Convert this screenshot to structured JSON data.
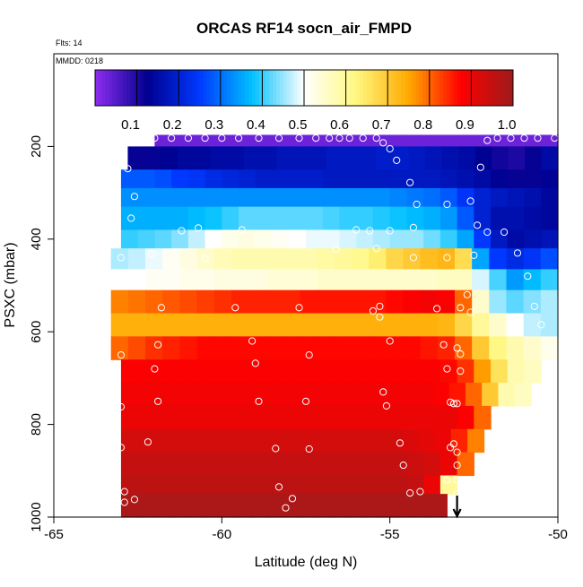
{
  "chart_data": {
    "type": "heatmap",
    "title": "ORCAS RF14 socn_air_FMPD",
    "note_flts": "Flts: 14",
    "note_mmdd": "MMDD: 0218",
    "xlabel": "Latitude (deg N)",
    "ylabel": "PSXC (mbar)",
    "xlim": [
      -65,
      -50
    ],
    "ylim": [
      1000,
      0
    ],
    "x_ticks": [
      -65,
      -60,
      -55,
      -50
    ],
    "x_tick_labels": [
      "-65",
      "-60",
      "-55",
      "-50"
    ],
    "y_ticks": [
      200,
      400,
      600,
      800,
      1000
    ],
    "y_tick_labels": [
      "200",
      "400",
      "600",
      "800",
      "1000"
    ],
    "colorbar": {
      "range": [
        0,
        1
      ],
      "ticks": [
        0.1,
        0.2,
        0.3,
        0.4,
        0.5,
        0.6,
        0.7,
        0.8,
        0.9,
        1.0
      ],
      "tick_labels": [
        "0.1",
        "0.2",
        "0.3",
        "0.4",
        "0.5",
        "0.6",
        "0.7",
        "0.8",
        "0.9",
        "1.0"
      ]
    },
    "colorscale": [
      "#8e2df1",
      "#00008f",
      "#0038ff",
      "#00c0ff",
      "#ffffff",
      "#fff880",
      "#ffaa00",
      "#ff0000",
      "#9c1b1b"
    ],
    "lat_edges": [
      -63.0,
      -62.5,
      -62.0,
      -61.5,
      -61.0,
      -60.5,
      -60.0,
      -59.5,
      -59.0,
      -58.5,
      -58.0,
      -57.5,
      -57.0,
      -56.5,
      -56.0,
      -55.5,
      -55.0,
      -54.5,
      -54.0,
      -53.5,
      -53.0,
      -52.5,
      -52.0,
      -51.5,
      -51.0,
      -50.5,
      -50.0
    ],
    "layers": [
      {
        "p": [
          175,
          200
        ],
        "lat0": -62.0,
        "lat1": -50.0,
        "v": [
          0.03,
          0.03,
          0.03,
          0.03,
          0.03,
          0.03,
          0.03,
          0.03,
          0.03,
          0.03,
          0.03,
          0.03,
          0.03,
          0.03,
          0.03,
          0.03,
          0.03,
          0.03,
          0.03,
          0.03,
          0.03,
          0.03,
          0.03,
          0.03,
          0.03,
          0.03
        ]
      },
      {
        "p": [
          200,
          250
        ],
        "lat0": -62.8,
        "lat1": -50.0,
        "v": [
          0.12,
          0.12,
          0.13,
          0.14,
          0.14,
          0.15,
          0.15,
          0.16,
          0.16,
          0.17,
          0.17,
          0.17,
          0.18,
          0.18,
          0.18,
          0.19,
          0.19,
          0.18,
          0.17,
          0.16,
          0.15,
          0.13,
          0.11,
          0.1,
          0.12,
          0.15
        ]
      },
      {
        "p": [
          250,
          290
        ],
        "lat0": -63.0,
        "lat1": -50.0,
        "v": [
          0.28,
          0.28,
          0.27,
          0.25,
          0.24,
          0.22,
          0.21,
          0.2,
          0.19,
          0.19,
          0.19,
          0.19,
          0.18,
          0.18,
          0.18,
          0.18,
          0.18,
          0.18,
          0.18,
          0.17,
          0.16,
          0.15,
          0.13,
          0.12,
          0.12,
          0.13
        ]
      },
      {
        "p": [
          290,
          330
        ],
        "lat0": -63.0,
        "lat1": -50.0,
        "v": [
          0.33,
          0.33,
          0.33,
          0.33,
          0.33,
          0.33,
          0.33,
          0.33,
          0.33,
          0.33,
          0.33,
          0.33,
          0.33,
          0.33,
          0.33,
          0.33,
          0.32,
          0.31,
          0.3,
          0.28,
          0.24,
          0.2,
          0.18,
          0.17,
          0.16,
          0.14
        ]
      },
      {
        "p": [
          330,
          380
        ],
        "lat0": -63.0,
        "lat1": -50.0,
        "v": [
          0.36,
          0.36,
          0.36,
          0.36,
          0.37,
          0.38,
          0.4,
          0.42,
          0.42,
          0.42,
          0.42,
          0.42,
          0.41,
          0.4,
          0.4,
          0.39,
          0.38,
          0.37,
          0.36,
          0.34,
          0.28,
          0.2,
          0.16,
          0.16,
          0.15,
          0.14
        ]
      },
      {
        "p": [
          380,
          420
        ],
        "lat0": -63.0,
        "lat1": -50.0,
        "v": [
          0.4,
          0.41,
          0.42,
          0.44,
          0.47,
          0.5,
          0.52,
          0.53,
          0.52,
          0.51,
          0.5,
          0.49,
          0.49,
          0.48,
          0.47,
          0.46,
          0.45,
          0.45,
          0.43,
          0.4,
          0.35,
          0.25,
          0.18,
          0.15,
          0.16,
          0.17
        ]
      },
      {
        "p": [
          420,
          465
        ],
        "lat0": -63.3,
        "lat1": -50.0,
        "v": [
          0.46,
          0.47,
          0.49,
          0.51,
          0.53,
          0.55,
          0.57,
          0.58,
          0.58,
          0.58,
          0.58,
          0.58,
          0.59,
          0.6,
          0.61,
          0.64,
          0.68,
          0.7,
          0.72,
          0.73,
          0.67,
          0.35,
          0.25,
          0.22,
          0.24,
          0.27
        ]
      },
      {
        "p": [
          465,
          510
        ],
        "lat0": -63.3,
        "lat1": -50.0,
        "v": [
          0.5,
          0.5,
          0.51,
          0.51,
          0.52,
          0.52,
          0.53,
          0.53,
          0.53,
          0.54,
          0.54,
          0.54,
          0.55,
          0.55,
          0.55,
          0.55,
          0.55,
          0.55,
          0.55,
          0.56,
          0.56,
          0.48,
          0.41,
          0.34,
          0.37,
          0.4
        ]
      },
      {
        "p": [
          510,
          560
        ],
        "lat0": -63.3,
        "lat1": -50.0,
        "v": [
          0.78,
          0.79,
          0.8,
          0.81,
          0.82,
          0.83,
          0.84,
          0.85,
          0.85,
          0.85,
          0.85,
          0.86,
          0.86,
          0.86,
          0.86,
          0.86,
          0.87,
          0.88,
          0.89,
          0.88,
          0.8,
          0.55,
          0.45,
          0.42,
          0.44,
          0.46
        ]
      },
      {
        "p": [
          560,
          610
        ],
        "lat0": -63.3,
        "lat1": -50.0,
        "v": [
          0.74,
          0.74,
          0.74,
          0.74,
          0.74,
          0.74,
          0.74,
          0.74,
          0.74,
          0.74,
          0.74,
          0.74,
          0.74,
          0.74,
          0.74,
          0.74,
          0.74,
          0.74,
          0.74,
          0.73,
          0.68,
          0.6,
          0.55,
          0.5,
          0.47,
          0.46
        ]
      },
      {
        "p": [
          610,
          660
        ],
        "lat0": -63.3,
        "lat1": -50.0,
        "v": [
          0.8,
          0.82,
          0.84,
          0.85,
          0.86,
          0.87,
          0.87,
          0.87,
          0.87,
          0.87,
          0.87,
          0.87,
          0.87,
          0.87,
          0.87,
          0.87,
          0.87,
          0.87,
          0.86,
          0.85,
          0.8,
          0.7,
          0.62,
          0.58,
          0.55,
          0.52
        ]
      },
      {
        "p": [
          660,
          710
        ],
        "lat0": -63.0,
        "lat1": -50.5,
        "v": [
          0.88,
          0.88,
          0.88,
          0.88,
          0.88,
          0.88,
          0.88,
          0.88,
          0.88,
          0.88,
          0.88,
          0.88,
          0.88,
          0.88,
          0.88,
          0.88,
          0.88,
          0.88,
          0.88,
          0.87,
          0.84,
          0.76,
          0.66,
          0.58,
          0.56
        ]
      },
      {
        "p": [
          710,
          760
        ],
        "lat0": -63.0,
        "lat1": -50.8,
        "v": [
          0.89,
          0.89,
          0.89,
          0.89,
          0.89,
          0.89,
          0.89,
          0.89,
          0.89,
          0.89,
          0.89,
          0.89,
          0.89,
          0.89,
          0.89,
          0.89,
          0.89,
          0.89,
          0.89,
          0.88,
          0.86,
          0.8,
          0.7,
          0.58,
          0.56
        ]
      },
      {
        "p": [
          760,
          810
        ],
        "lat0": -63.0,
        "lat1": -52.0,
        "v": [
          0.9,
          0.9,
          0.9,
          0.9,
          0.9,
          0.9,
          0.9,
          0.9,
          0.9,
          0.9,
          0.9,
          0.9,
          0.9,
          0.9,
          0.9,
          0.9,
          0.9,
          0.9,
          0.9,
          0.9,
          0.88,
          0.8
        ]
      },
      {
        "p": [
          810,
          860
        ],
        "lat0": -63.0,
        "lat1": -52.2,
        "v": [
          0.93,
          0.93,
          0.93,
          0.93,
          0.93,
          0.93,
          0.93,
          0.93,
          0.93,
          0.93,
          0.93,
          0.93,
          0.93,
          0.93,
          0.93,
          0.93,
          0.93,
          0.92,
          0.91,
          0.9,
          0.85,
          0.78
        ]
      },
      {
        "p": [
          860,
          910
        ],
        "lat0": -63.0,
        "lat1": -52.5,
        "v": [
          0.95,
          0.95,
          0.95,
          0.95,
          0.95,
          0.95,
          0.95,
          0.95,
          0.95,
          0.95,
          0.95,
          0.95,
          0.95,
          0.95,
          0.95,
          0.95,
          0.95,
          0.94,
          0.93,
          0.9,
          0.8
        ]
      },
      {
        "p": [
          910,
          950
        ],
        "lat0": -63.0,
        "lat1": -53.0,
        "v": [
          0.96,
          0.96,
          0.96,
          0.96,
          0.96,
          0.96,
          0.96,
          0.96,
          0.96,
          0.96,
          0.96,
          0.96,
          0.96,
          0.96,
          0.96,
          0.96,
          0.96,
          0.95,
          0.9,
          0.6
        ]
      },
      {
        "p": [
          950,
          1000
        ],
        "lat0": -63.0,
        "lat1": -53.3,
        "v": [
          0.98,
          0.98,
          0.98,
          0.98,
          0.98,
          0.98,
          0.98,
          0.98,
          0.98,
          0.98,
          0.98,
          0.98,
          0.98,
          0.98,
          0.98,
          0.98,
          0.98,
          0.98,
          0.98,
          0.98
        ]
      }
    ],
    "observations": [
      {
        "lat": -62.0,
        "p": 182
      },
      {
        "lat": -61.5,
        "p": 182
      },
      {
        "lat": -61.0,
        "p": 182
      },
      {
        "lat": -60.5,
        "p": 182
      },
      {
        "lat": -60.0,
        "p": 182
      },
      {
        "lat": -59.5,
        "p": 182
      },
      {
        "lat": -58.9,
        "p": 182
      },
      {
        "lat": -58.3,
        "p": 182
      },
      {
        "lat": -57.7,
        "p": 182
      },
      {
        "lat": -57.2,
        "p": 182
      },
      {
        "lat": -56.8,
        "p": 182
      },
      {
        "lat": -56.5,
        "p": 182
      },
      {
        "lat": -56.2,
        "p": 182
      },
      {
        "lat": -55.8,
        "p": 182
      },
      {
        "lat": -55.4,
        "p": 182
      },
      {
        "lat": -55.2,
        "p": 192
      },
      {
        "lat": -55.0,
        "p": 205
      },
      {
        "lat": -54.8,
        "p": 230
      },
      {
        "lat": -54.4,
        "p": 278
      },
      {
        "lat": -54.2,
        "p": 325
      },
      {
        "lat": -52.1,
        "p": 187
      },
      {
        "lat": -51.8,
        "p": 182
      },
      {
        "lat": -51.4,
        "p": 182
      },
      {
        "lat": -51.0,
        "p": 182
      },
      {
        "lat": -50.6,
        "p": 182
      },
      {
        "lat": -50.1,
        "p": 182
      },
      {
        "lat": -62.8,
        "p": 248
      },
      {
        "lat": -62.6,
        "p": 308
      },
      {
        "lat": -62.7,
        "p": 355
      },
      {
        "lat": -61.2,
        "p": 382
      },
      {
        "lat": -60.7,
        "p": 376
      },
      {
        "lat": -60.4,
        "p": 390
      },
      {
        "lat": -59.4,
        "p": 380
      },
      {
        "lat": -56.0,
        "p": 380
      },
      {
        "lat": -55.6,
        "p": 382
      },
      {
        "lat": -55.0,
        "p": 382
      },
      {
        "lat": -54.3,
        "p": 375
      },
      {
        "lat": -53.3,
        "p": 325
      },
      {
        "lat": -52.3,
        "p": 245
      },
      {
        "lat": -52.6,
        "p": 318
      },
      {
        "lat": -52.4,
        "p": 370
      },
      {
        "lat": -52.1,
        "p": 385
      },
      {
        "lat": -51.6,
        "p": 385
      },
      {
        "lat": -51.2,
        "p": 430
      },
      {
        "lat": -56.6,
        "p": 422
      },
      {
        "lat": -55.4,
        "p": 420
      },
      {
        "lat": -63.0,
        "p": 440
      },
      {
        "lat": -62.1,
        "p": 432
      },
      {
        "lat": -60.5,
        "p": 442
      },
      {
        "lat": -54.3,
        "p": 440
      },
      {
        "lat": -53.3,
        "p": 440
      },
      {
        "lat": -52.5,
        "p": 435
      },
      {
        "lat": -50.9,
        "p": 480
      },
      {
        "lat": -52.7,
        "p": 520
      },
      {
        "lat": -55.3,
        "p": 545
      },
      {
        "lat": -55.5,
        "p": 555
      },
      {
        "lat": -57.7,
        "p": 548
      },
      {
        "lat": -59.6,
        "p": 548
      },
      {
        "lat": -61.8,
        "p": 548
      },
      {
        "lat": -50.7,
        "p": 545
      },
      {
        "lat": -53.6,
        "p": 550
      },
      {
        "lat": -52.9,
        "p": 548
      },
      {
        "lat": -52.6,
        "p": 558
      },
      {
        "lat": -55.3,
        "p": 568
      },
      {
        "lat": -50.5,
        "p": 585
      },
      {
        "lat": -59.1,
        "p": 620
      },
      {
        "lat": -61.9,
        "p": 628
      },
      {
        "lat": -63.0,
        "p": 650
      },
      {
        "lat": -57.4,
        "p": 650
      },
      {
        "lat": -55.0,
        "p": 620
      },
      {
        "lat": -53.4,
        "p": 628
      },
      {
        "lat": -53.0,
        "p": 635
      },
      {
        "lat": -52.9,
        "p": 648
      },
      {
        "lat": -50.2,
        "p": 640
      },
      {
        "lat": -62.0,
        "p": 680
      },
      {
        "lat": -59.0,
        "p": 668
      },
      {
        "lat": -53.3,
        "p": 680
      },
      {
        "lat": -52.9,
        "p": 685
      },
      {
        "lat": -55.2,
        "p": 730
      },
      {
        "lat": -58.9,
        "p": 750
      },
      {
        "lat": -57.5,
        "p": 750
      },
      {
        "lat": -61.9,
        "p": 750
      },
      {
        "lat": -63.0,
        "p": 762
      },
      {
        "lat": -55.1,
        "p": 760
      },
      {
        "lat": -53.2,
        "p": 752
      },
      {
        "lat": -53.1,
        "p": 755
      },
      {
        "lat": -53.0,
        "p": 755
      },
      {
        "lat": -62.2,
        "p": 838
      },
      {
        "lat": -58.4,
        "p": 852
      },
      {
        "lat": -57.4,
        "p": 853
      },
      {
        "lat": -54.7,
        "p": 840
      },
      {
        "lat": -53.2,
        "p": 850
      },
      {
        "lat": -53.1,
        "p": 842
      },
      {
        "lat": -63.0,
        "p": 850
      },
      {
        "lat": -53.0,
        "p": 860
      },
      {
        "lat": -54.6,
        "p": 888
      },
      {
        "lat": -53.0,
        "p": 888
      },
      {
        "lat": -53.3,
        "p": 920
      },
      {
        "lat": -53.0,
        "p": 920
      },
      {
        "lat": -58.3,
        "p": 935
      },
      {
        "lat": -62.9,
        "p": 945
      },
      {
        "lat": -54.4,
        "p": 948
      },
      {
        "lat": -54.1,
        "p": 945
      },
      {
        "lat": -53.0,
        "p": 950
      },
      {
        "lat": -57.9,
        "p": 960
      },
      {
        "lat": -62.9,
        "p": 968
      },
      {
        "lat": -62.6,
        "p": 962
      },
      {
        "lat": -58.1,
        "p": 980
      }
    ],
    "arrow_lat": -53.0
  }
}
